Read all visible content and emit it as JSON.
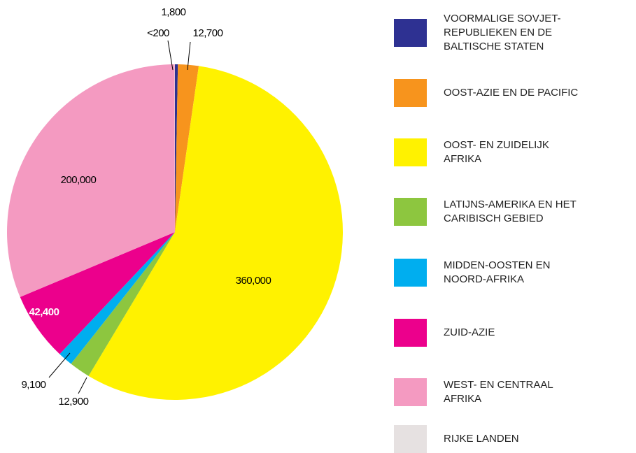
{
  "chart_data": {
    "type": "pie",
    "categories": [
      "VOORMALIGE SOVJET-REPUBLIEKEN EN DE BALTISCHE STATEN",
      "OOST-AZIE EN DE PACIFIC",
      "OOST- EN ZUIDELIJK AFRIKA",
      "LATIJNS-AMERIKA EN  HET CARIBISCH GEBIED",
      "MIDDEN-OOSTEN EN NOORD-AFRIKA",
      "ZUID-AZIE",
      "WEST- EN CENTRAAL AFRIKA",
      "RIJKE LANDEN"
    ],
    "values": [
      1800,
      12700,
      360000,
      12900,
      9100,
      42400,
      200000,
      200
    ],
    "value_labels": [
      "1,800",
      "12,700",
      "360,000",
      "12,900",
      "9,100",
      "42,400",
      "200,000",
      "<200"
    ],
    "colors": [
      "#2e3192",
      "#f7941d",
      "#fff200",
      "#8dc63f",
      "#00aeef",
      "#ec008c",
      "#f49ac1",
      "#e6e1e1"
    ]
  }
}
